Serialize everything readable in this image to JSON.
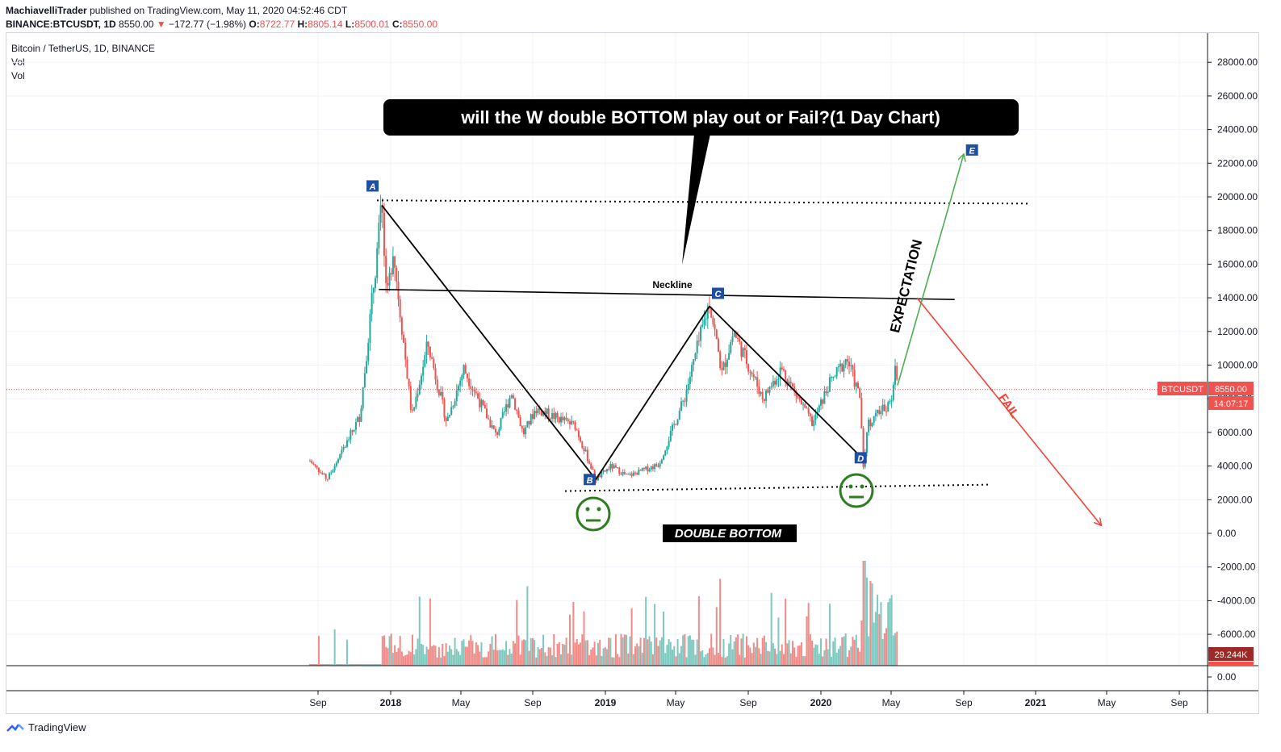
{
  "header": {
    "author": "MachiavelliTrader",
    "published_text": "published on TradingView.com, May 11, 2020 04:52:46 CDT",
    "symbol_line": "BINANCE:BTCUSDT, 1D",
    "last": "8550.00",
    "arrow": "▼",
    "change": "−172.77 (−1.98%)",
    "o_label": "O:",
    "o_value": "8722.77",
    "h_label": "H:",
    "h_value": "8805.14",
    "l_label": "L:",
    "l_value": "8500.01",
    "c_label": "C:",
    "c_value": "8550.00"
  },
  "legend": {
    "title": "Bitcoin / TetherUS, 1D, BINANCE",
    "vol1": "Vol",
    "vol2": "Vol"
  },
  "annotations": {
    "callout": "will the W double BOTTOM play out or Fail?(1 Day Chart)",
    "neckline": "Neckline",
    "expectation": "EXPECTATION",
    "fail": "FAIL",
    "double_bottom": "DOUBLE BOTTOM",
    "points": [
      "A",
      "B",
      "C",
      "D",
      "E"
    ]
  },
  "price_tag": {
    "symbol": "BTCUSDT",
    "price": "8550.00",
    "countdown": "14:07:17"
  },
  "volume_tag": "29.244K",
  "footer": {
    "brand": "TradingView"
  },
  "colors": {
    "up": "#26a69a",
    "down": "#ef5350",
    "expectation": "#4caf50",
    "fail": "#f44336",
    "smiley": "#2e7d1e",
    "label_bg": "#1e4fa3"
  },
  "chart_data": {
    "type": "candlestick",
    "title": "Bitcoin / TetherUS, 1D, BINANCE",
    "price_axis": {
      "ticks": [
        "28000.00",
        "26000.00",
        "24000.00",
        "22000.00",
        "20000.00",
        "18000.00",
        "16000.00",
        "14000.00",
        "12000.00",
        "10000.00",
        "8000.00",
        "6000.00",
        "4000.00",
        "2000.00",
        "0.00",
        "-2000.00",
        "-4000.00",
        "-6000.00"
      ],
      "range": [
        -8400,
        28600
      ]
    },
    "volume_axis": {
      "ticks": [
        "0.00"
      ]
    },
    "time_axis": {
      "labels": [
        "Sep",
        "2018",
        "May",
        "Sep",
        "2019",
        "May",
        "Sep",
        "2020",
        "May",
        "Sep",
        "2021",
        "May",
        "Sep"
      ],
      "bold": [
        false,
        true,
        false,
        false,
        true,
        false,
        false,
        true,
        false,
        false,
        true,
        false,
        false
      ]
    },
    "series_anchors": [
      {
        "date": "2017-08-17",
        "price": 4300
      },
      {
        "date": "2017-09-15",
        "price": 3200
      },
      {
        "date": "2017-10-10",
        "price": 4800
      },
      {
        "date": "2017-11-10",
        "price": 7000
      },
      {
        "date": "2017-12-17",
        "price": 19500
      },
      {
        "date": "2017-12-25",
        "price": 13500
      },
      {
        "date": "2018-01-05",
        "price": 17000
      },
      {
        "date": "2018-02-06",
        "price": 6900
      },
      {
        "date": "2018-03-05",
        "price": 11300
      },
      {
        "date": "2018-04-06",
        "price": 6600
      },
      {
        "date": "2018-05-05",
        "price": 9800
      },
      {
        "date": "2018-06-29",
        "price": 5800
      },
      {
        "date": "2018-07-25",
        "price": 8400
      },
      {
        "date": "2018-08-14",
        "price": 5900
      },
      {
        "date": "2018-09-04",
        "price": 7400
      },
      {
        "date": "2018-11-10",
        "price": 6400
      },
      {
        "date": "2018-12-15",
        "price": 3200
      },
      {
        "date": "2019-01-10",
        "price": 4000
      },
      {
        "date": "2019-02-07",
        "price": 3400
      },
      {
        "date": "2019-04-01",
        "price": 4100
      },
      {
        "date": "2019-05-14",
        "price": 8000
      },
      {
        "date": "2019-06-26",
        "price": 13800
      },
      {
        "date": "2019-07-17",
        "price": 9500
      },
      {
        "date": "2019-08-06",
        "price": 12000
      },
      {
        "date": "2019-09-25",
        "price": 8000
      },
      {
        "date": "2019-10-26",
        "price": 9800
      },
      {
        "date": "2019-12-18",
        "price": 6500
      },
      {
        "date": "2020-01-14",
        "price": 8800
      },
      {
        "date": "2020-02-14",
        "price": 10400
      },
      {
        "date": "2020-03-08",
        "price": 8000
      },
      {
        "date": "2020-03-13",
        "price": 3800
      },
      {
        "date": "2020-03-20",
        "price": 6500
      },
      {
        "date": "2020-04-28",
        "price": 7800
      },
      {
        "date": "2020-05-08",
        "price": 10000
      },
      {
        "date": "2020-05-11",
        "price": 8550
      }
    ],
    "levels": {
      "top_dotted": 19600,
      "bottom_dotted": 2800,
      "neckline": [
        {
          "date": "2017-12-12",
          "price": 14500
        },
        {
          "date": "2020-08-15",
          "price": 13900
        }
      ],
      "last_price": 8550
    },
    "pattern": {
      "A": {
        "date": "2017-12-17",
        "price": 19500
      },
      "B": {
        "date": "2018-12-15",
        "price": 3200
      },
      "C": {
        "date": "2019-06-26",
        "price": 13500
      },
      "D": {
        "date": "2020-03-16",
        "price": 4300
      },
      "E": {
        "date": "2020-08-30",
        "price": 22500
      }
    },
    "projections": {
      "expectation": [
        {
          "date": "2020-05-10",
          "price": 8800
        },
        {
          "date": "2020-08-30",
          "price": 22500
        }
      ],
      "fail": [
        {
          "date": "2020-06-12",
          "price": 14000
        },
        {
          "date": "2021-04-20",
          "price": 500
        }
      ]
    }
  }
}
